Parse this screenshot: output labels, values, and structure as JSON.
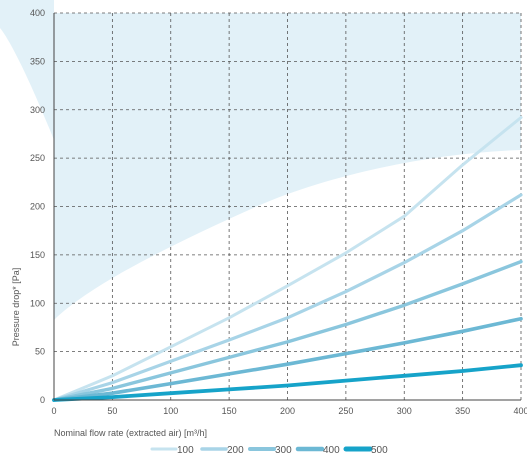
{
  "chart_data": {
    "type": "line",
    "title": "",
    "xlabel": "Nominal flow rate (extracted air) [m³/h]",
    "ylabel": "Pressure drop* [Pa]",
    "xlim": [
      0,
      400
    ],
    "ylim": [
      0,
      400
    ],
    "xticks": [
      "0",
      "50",
      "100",
      "150",
      "200",
      "250",
      "300",
      "350",
      "400"
    ],
    "yticks": [
      "0",
      "50",
      "100",
      "150",
      "200",
      "250",
      "300",
      "350",
      "400"
    ],
    "grid": true,
    "grid_style": "dashed",
    "legend_position": "bottom",
    "background_band_color": "#e2f1f8",
    "series": [
      {
        "name": "100",
        "color": "#c6e3ef",
        "x": [
          0,
          50,
          100,
          150,
          200,
          250,
          300,
          350,
          400
        ],
        "y": [
          0,
          25,
          55,
          85,
          118,
          152,
          190,
          243,
          292
        ]
      },
      {
        "name": "200",
        "color": "#a8d4e7",
        "x": [
          0,
          50,
          100,
          150,
          200,
          250,
          300,
          350,
          400
        ],
        "y": [
          0,
          18,
          40,
          62,
          85,
          112,
          142,
          175,
          212
        ]
      },
      {
        "name": "300",
        "color": "#8ac6dd",
        "x": [
          0,
          50,
          100,
          150,
          200,
          250,
          300,
          350,
          400
        ],
        "y": [
          0,
          12,
          28,
          44,
          60,
          78,
          98,
          120,
          143
        ]
      },
      {
        "name": "400",
        "color": "#6cb8d4",
        "x": [
          0,
          50,
          100,
          150,
          200,
          250,
          300,
          350,
          400
        ],
        "y": [
          0,
          7,
          17,
          27,
          37,
          48,
          59,
          71,
          84
        ]
      },
      {
        "name": "500",
        "color": "#16a3c9",
        "x": [
          0,
          50,
          100,
          150,
          200,
          250,
          300,
          350,
          400
        ],
        "y": [
          0,
          3,
          7,
          11,
          15,
          20,
          25,
          30,
          36
        ]
      }
    ]
  }
}
